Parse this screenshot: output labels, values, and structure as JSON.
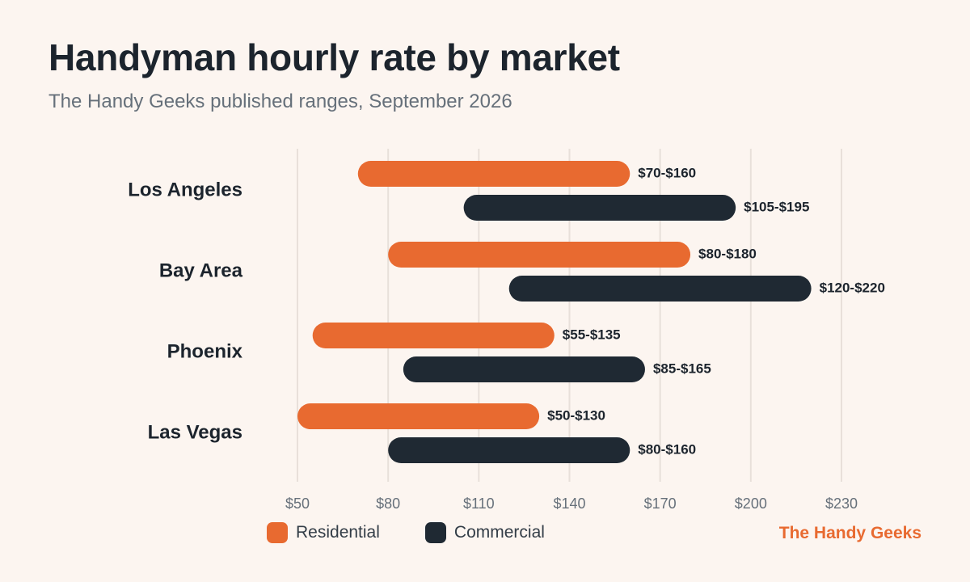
{
  "header": {
    "title": "Handyman hourly rate by market",
    "subtitle": "The Handy Geeks published ranges, September 2026"
  },
  "legend": {
    "residential_label": "Residential",
    "commercial_label": "Commercial"
  },
  "brand": {
    "name": "The Handy Geeks"
  },
  "colors": {
    "residential": "#e86a30",
    "commercial": "#1f2933",
    "brand": "#e86a30",
    "background": "#fcf5f0",
    "grid": "#e8e0da"
  },
  "chart_data": {
    "type": "range-bar",
    "title": "Handyman hourly rate by market",
    "subtitle": "The Handy Geeks published ranges, September 2026",
    "xlabel": "",
    "ylabel": "",
    "xlim": [
      50,
      230
    ],
    "x_ticks": [
      50,
      80,
      110,
      140,
      170,
      200,
      230
    ],
    "x_tick_labels": [
      "$50",
      "$80",
      "$110",
      "$140",
      "$170",
      "$200",
      "$230"
    ],
    "grid": "vertical",
    "legend_position": "bottom-left",
    "categories": [
      "Los Angeles",
      "Bay Area",
      "Phoenix",
      "Las Vegas"
    ],
    "series": [
      {
        "name": "Residential",
        "ranges": [
          [
            70,
            160
          ],
          [
            80,
            180
          ],
          [
            55,
            135
          ],
          [
            50,
            130
          ]
        ],
        "labels": [
          "$70-$160",
          "$80-$180",
          "$55-$135",
          "$50-$130"
        ]
      },
      {
        "name": "Commercial",
        "ranges": [
          [
            105,
            195
          ],
          [
            120,
            220
          ],
          [
            85,
            165
          ],
          [
            80,
            160
          ]
        ],
        "labels": [
          "$105-$195",
          "$120-$220",
          "$85-$165",
          "$80-$160"
        ]
      }
    ]
  }
}
